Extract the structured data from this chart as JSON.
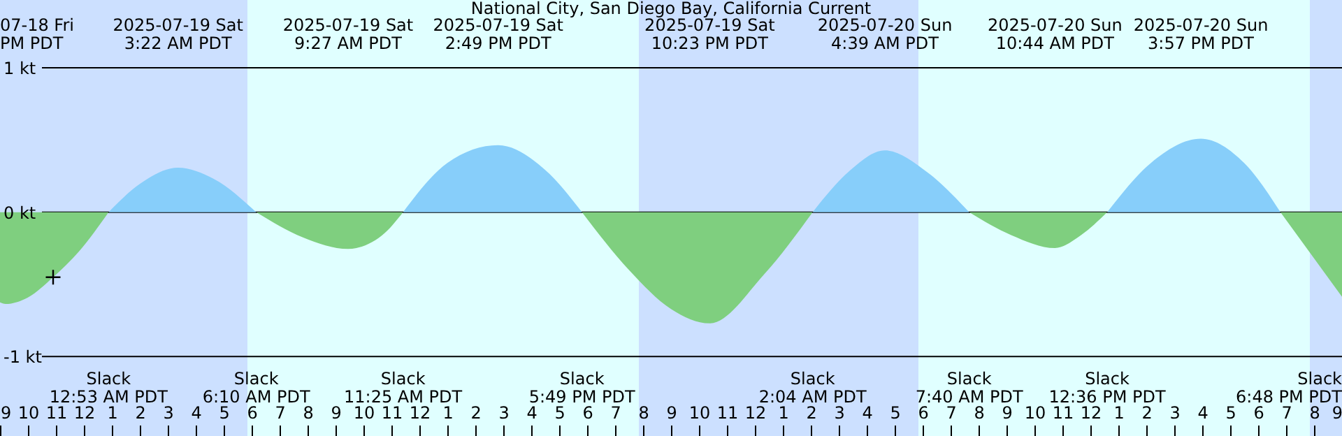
{
  "chart_data": {
    "type": "area",
    "title": "National City, San Diego Bay, California Current",
    "xlim": [
      "2025-07-18T21:00",
      "2025-07-20T21:00"
    ],
    "xticks": [
      {
        "value": "2025-07-18T21:00",
        "label": "9"
      },
      {
        "value": "2025-07-18T22:00",
        "label": "10"
      },
      {
        "value": "2025-07-18T23:00",
        "label": "11"
      },
      {
        "value": "2025-07-19T00:00",
        "label": "12"
      },
      {
        "value": "2025-07-19T01:00",
        "label": "1"
      },
      {
        "value": "2025-07-19T02:00",
        "label": "2"
      },
      {
        "value": "2025-07-19T03:00",
        "label": "3"
      },
      {
        "value": "2025-07-19T04:00",
        "label": "4"
      },
      {
        "value": "2025-07-19T05:00",
        "label": "5"
      },
      {
        "value": "2025-07-19T06:00",
        "label": "6"
      },
      {
        "value": "2025-07-19T07:00",
        "label": "7"
      },
      {
        "value": "2025-07-19T08:00",
        "label": "8"
      },
      {
        "value": "2025-07-19T09:00",
        "label": "9"
      },
      {
        "value": "2025-07-19T10:00",
        "label": "10"
      },
      {
        "value": "2025-07-19T11:00",
        "label": "11"
      },
      {
        "value": "2025-07-19T12:00",
        "label": "12"
      },
      {
        "value": "2025-07-19T13:00",
        "label": "1"
      },
      {
        "value": "2025-07-19T14:00",
        "label": "2"
      },
      {
        "value": "2025-07-19T15:00",
        "label": "3"
      },
      {
        "value": "2025-07-19T16:00",
        "label": "4"
      },
      {
        "value": "2025-07-19T17:00",
        "label": "5"
      },
      {
        "value": "2025-07-19T18:00",
        "label": "6"
      },
      {
        "value": "2025-07-19T19:00",
        "label": "7"
      },
      {
        "value": "2025-07-19T20:00",
        "label": "8"
      },
      {
        "value": "2025-07-19T21:00",
        "label": "9"
      },
      {
        "value": "2025-07-19T22:00",
        "label": "10"
      },
      {
        "value": "2025-07-19T23:00",
        "label": "11"
      },
      {
        "value": "2025-07-20T00:00",
        "label": "12"
      },
      {
        "value": "2025-07-20T01:00",
        "label": "1"
      },
      {
        "value": "2025-07-20T02:00",
        "label": "2"
      },
      {
        "value": "2025-07-20T03:00",
        "label": "3"
      },
      {
        "value": "2025-07-20T04:00",
        "label": "4"
      },
      {
        "value": "2025-07-20T05:00",
        "label": "5"
      },
      {
        "value": "2025-07-20T06:00",
        "label": "6"
      },
      {
        "value": "2025-07-20T07:00",
        "label": "7"
      },
      {
        "value": "2025-07-20T08:00",
        "label": "8"
      },
      {
        "value": "2025-07-20T09:00",
        "label": "9"
      },
      {
        "value": "2025-07-20T10:00",
        "label": "10"
      },
      {
        "value": "2025-07-20T11:00",
        "label": "11"
      },
      {
        "value": "2025-07-20T12:00",
        "label": "12"
      },
      {
        "value": "2025-07-20T13:00",
        "label": "1"
      },
      {
        "value": "2025-07-20T14:00",
        "label": "2"
      },
      {
        "value": "2025-07-20T15:00",
        "label": "3"
      },
      {
        "value": "2025-07-20T16:00",
        "label": "4"
      },
      {
        "value": "2025-07-20T17:00",
        "label": "5"
      },
      {
        "value": "2025-07-20T18:00",
        "label": "6"
      },
      {
        "value": "2025-07-20T19:00",
        "label": "7"
      },
      {
        "value": "2025-07-20T20:00",
        "label": "8"
      },
      {
        "value": "2025-07-20T21:00",
        "label": "9"
      }
    ],
    "ylim": [
      -1.55,
      1.47
    ],
    "yticks": [
      {
        "value": 1,
        "label": "1 kt"
      },
      {
        "value": 0,
        "label": "0 kt"
      },
      {
        "value": -1,
        "label": "-1 kt"
      }
    ],
    "grid": "y",
    "series": [
      {
        "color": "#87cefa",
        "x": [
          "2025-07-19T00:53",
          "2025-07-19T02:00",
          "2025-07-19T03:22",
          "2025-07-19T04:40",
          "2025-07-19T06:10",
          "2025-07-19T09:27",
          "2025-07-19T11:25",
          "2025-07-19T13:00",
          "2025-07-19T14:49",
          "2025-07-19T16:30",
          "2025-07-19T17:49",
          "2025-07-19T22:23",
          "2025-07-20T02:04",
          "2025-07-20T03:20",
          "2025-07-20T04:39",
          "2025-07-20T06:10",
          "2025-07-20T07:40",
          "2025-07-20T10:44",
          "2025-07-20T12:36",
          "2025-07-20T14:10",
          "2025-07-20T15:57",
          "2025-07-20T17:30",
          "2025-07-20T18:48"
        ],
        "values": [
          0,
          0.196,
          0.309,
          0.229,
          0,
          null,
          0,
          0.341,
          0.464,
          0.293,
          0,
          null,
          0,
          0.277,
          0.428,
          0.277,
          0,
          null,
          0,
          0.341,
          0.509,
          0.341,
          0
        ]
      },
      {
        "color": "#7fcf7f",
        "x": [
          "2025-07-18T21:00",
          "2025-07-18T21:12",
          "2025-07-18T22:00",
          "2025-07-18T22:54",
          "2025-07-18T23:50",
          "2025-07-19T00:53",
          "2025-07-19T03:22",
          "2025-07-19T06:10",
          "2025-07-19T07:50",
          "2025-07-19T09:27",
          "2025-07-19T10:40",
          "2025-07-19T11:25",
          "2025-07-19T14:49",
          "2025-07-19T17:49",
          "2025-07-19T19:30",
          "2025-07-19T21:00",
          "2025-07-19T22:23",
          "2025-07-20T00:20",
          "2025-07-20T02:04",
          "2025-07-20T04:39",
          "2025-07-20T07:40",
          "2025-07-20T09:10",
          "2025-07-20T10:44",
          "2025-07-20T11:40",
          "2025-07-20T12:36",
          "2025-07-20T15:57",
          "2025-07-20T18:48",
          "2025-07-20T20:00",
          "2025-07-20T21:00"
        ],
        "values": [
          -0.625,
          -0.635,
          -0.59,
          -0.45,
          -0.27,
          0,
          null,
          0,
          -0.174,
          -0.254,
          -0.16,
          0,
          null,
          0,
          -0.4,
          -0.67,
          -0.77,
          -0.43,
          0,
          null,
          0,
          -0.158,
          -0.248,
          -0.158,
          0,
          null,
          0,
          -0.32,
          -0.586
        ]
      },
      {
        "type": "scatter",
        "color": "#000000",
        "marker": "cross",
        "x": [
          "2025-07-18T22:54"
        ],
        "values": [
          -0.45
        ]
      }
    ],
    "bands": [
      {
        "axis": "x",
        "from": "2025-07-18T21:00",
        "to": "2025-07-19T05:51",
        "color": "#cce0ff"
      },
      {
        "axis": "x",
        "from": "2025-07-19T05:51",
        "to": "2025-07-19T19:51",
        "color": "#e0ffff"
      },
      {
        "axis": "x",
        "from": "2025-07-19T19:51",
        "to": "2025-07-20T05:51",
        "color": "#cce0ff"
      },
      {
        "axis": "x",
        "from": "2025-07-20T05:51",
        "to": "2025-07-20T19:51",
        "color": "#e0ffff"
      },
      {
        "axis": "x",
        "from": "2025-07-20T19:51",
        "to": "2025-07-20T21:00",
        "color": "#cce0ff"
      }
    ],
    "annotations": [
      "07-18 Fri\nPM PDT",
      "2025-07-19 Sat\n3:22 AM PDT",
      "2025-07-19 Sat\n9:27 AM PDT",
      "2025-07-19 Sat\n2:49 PM PDT",
      "2025-07-19 Sat\n10:23 PM PDT",
      "2025-07-20 Sun\n4:39 AM PDT",
      "2025-07-20 Sun\n10:44 AM PDT",
      "2025-07-20 Sun\n3:57 PM PDT",
      "Slack\n12:53 AM PDT",
      "Slack\n6:10 AM PDT",
      "Slack\n11:25 AM PDT",
      "Slack\n5:49 PM PDT",
      "Slack\n2:04 AM PDT",
      "Slack\n7:40 AM PDT",
      "Slack\n12:36 PM PDT",
      "Slack\n6:48 PM PDT"
    ]
  }
}
